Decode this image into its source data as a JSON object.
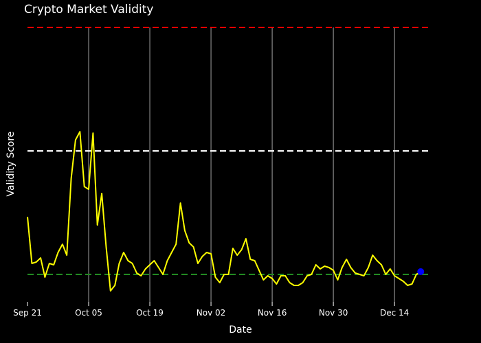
{
  "chart_data": {
    "type": "line",
    "title": "Crypto Market Validity",
    "xlabel": "Date",
    "ylabel": "Validity Score",
    "x_ticks": [
      {
        "date": "2023-09-21",
        "label": "Sep 21"
      },
      {
        "date": "2023-10-05",
        "label": "Oct 05"
      },
      {
        "date": "2023-10-19",
        "label": "Oct 19"
      },
      {
        "date": "2023-11-02",
        "label": "Nov 02"
      },
      {
        "date": "2023-11-16",
        "label": "Nov 16"
      },
      {
        "date": "2023-11-30",
        "label": "Nov 30"
      },
      {
        "date": "2023-12-14",
        "label": "Dec 14"
      }
    ],
    "xlim": [
      "2023-09-21",
      "2023-12-22"
    ],
    "ylim": [
      0,
      1
    ],
    "grid": {
      "x": true,
      "y": false
    },
    "series": [
      {
        "color": "#ffff00",
        "x": [
          "2023-09-21",
          "2023-09-22",
          "2023-09-23",
          "2023-09-24",
          "2023-09-25",
          "2023-09-26",
          "2023-09-27",
          "2023-09-28",
          "2023-09-29",
          "2023-09-30",
          "2023-10-01",
          "2023-10-02",
          "2023-10-03",
          "2023-10-04",
          "2023-10-05",
          "2023-10-06",
          "2023-10-07",
          "2023-10-08",
          "2023-10-09",
          "2023-10-10",
          "2023-10-11",
          "2023-10-12",
          "2023-10-13",
          "2023-10-14",
          "2023-10-15",
          "2023-10-16",
          "2023-10-17",
          "2023-10-18",
          "2023-10-19",
          "2023-10-20",
          "2023-10-21",
          "2023-10-22",
          "2023-10-23",
          "2023-10-24",
          "2023-10-25",
          "2023-10-26",
          "2023-10-27",
          "2023-10-28",
          "2023-10-29",
          "2023-10-30",
          "2023-10-31",
          "2023-11-01",
          "2023-11-02",
          "2023-11-03",
          "2023-11-04",
          "2023-11-05",
          "2023-11-06",
          "2023-11-07",
          "2023-11-08",
          "2023-11-09",
          "2023-11-10",
          "2023-11-11",
          "2023-11-12",
          "2023-11-13",
          "2023-11-14",
          "2023-11-15",
          "2023-11-16",
          "2023-11-17",
          "2023-11-18",
          "2023-11-19",
          "2023-11-20",
          "2023-11-21",
          "2023-11-22",
          "2023-11-23",
          "2023-11-24",
          "2023-11-25",
          "2023-11-26",
          "2023-11-27",
          "2023-11-28",
          "2023-11-29",
          "2023-11-30",
          "2023-12-01",
          "2023-12-02",
          "2023-12-03",
          "2023-12-04",
          "2023-12-05",
          "2023-12-06",
          "2023-12-07",
          "2023-12-08",
          "2023-12-09",
          "2023-12-10",
          "2023-12-11",
          "2023-12-12",
          "2023-12-13",
          "2023-12-14",
          "2023-12-15",
          "2023-12-16",
          "2023-12-17",
          "2023-12-18",
          "2023-12-19",
          "2023-12-20"
        ],
        "y": [
          0.31,
          0.14,
          0.145,
          0.16,
          0.09,
          0.14,
          0.135,
          0.18,
          0.21,
          0.17,
          0.45,
          0.59,
          0.62,
          0.42,
          0.41,
          0.615,
          0.28,
          0.395,
          0.2,
          0.04,
          0.06,
          0.14,
          0.18,
          0.15,
          0.14,
          0.105,
          0.095,
          0.12,
          0.135,
          0.15,
          0.125,
          0.1,
          0.15,
          0.18,
          0.21,
          0.36,
          0.26,
          0.215,
          0.2,
          0.14,
          0.165,
          0.18,
          0.175,
          0.09,
          0.07,
          0.1,
          0.1,
          0.195,
          0.17,
          0.19,
          0.23,
          0.155,
          0.15,
          0.115,
          0.08,
          0.095,
          0.085,
          0.065,
          0.095,
          0.095,
          0.07,
          0.06,
          0.06,
          0.07,
          0.095,
          0.1,
          0.135,
          0.12,
          0.13,
          0.125,
          0.115,
          0.08,
          0.125,
          0.155,
          0.125,
          0.105,
          0.1,
          0.095,
          0.125,
          0.17,
          0.15,
          0.135,
          0.1,
          0.12,
          0.095,
          0.085,
          0.075,
          0.06,
          0.065,
          0.1,
          0.11
        ]
      }
    ],
    "threshold_lines": [
      {
        "y": 1.0,
        "color": "#ff0000"
      },
      {
        "y": 0.55,
        "color": "#ffffff"
      },
      {
        "y": 0.1,
        "color": "#228b22"
      }
    ],
    "highlight_point": {
      "x": "2023-12-20",
      "y": 0.11,
      "color": "#0000ff"
    }
  }
}
